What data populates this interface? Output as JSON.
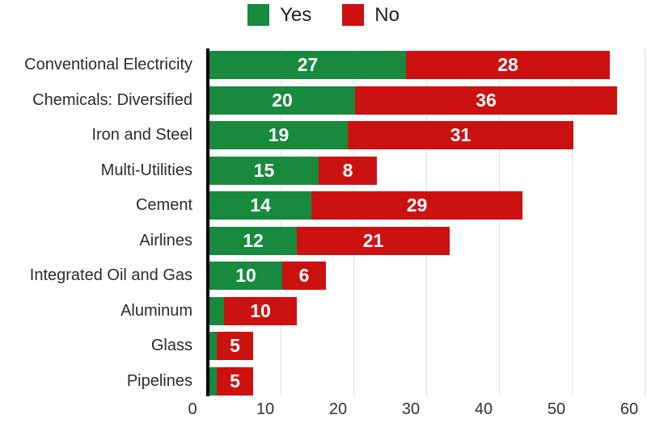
{
  "chart_data": {
    "type": "bar",
    "orientation": "horizontal",
    "stacked": true,
    "title": "",
    "categories": [
      "Conventional Electricity",
      "Chemicals: Diversified",
      "Iron and Steel",
      "Multi-Utilities",
      "Cement",
      "Airlines",
      "Integrated Oil and Gas",
      "Aluminum",
      "Glass",
      "Pipelines"
    ],
    "series": [
      {
        "name": "Yes",
        "color": "#178a3d",
        "values": [
          27,
          20,
          19,
          15,
          14,
          12,
          10,
          2,
          1,
          1
        ]
      },
      {
        "name": "No",
        "color": "#cc1111",
        "values": [
          28,
          36,
          31,
          8,
          29,
          21,
          6,
          10,
          5,
          5
        ]
      }
    ],
    "xlim": [
      0,
      60
    ],
    "xticks": [
      0,
      10,
      20,
      30,
      40,
      50,
      60
    ],
    "grid": true,
    "legend_position": "top",
    "value_label_color": "#ffffff",
    "axis_color": "#000000",
    "grid_color": "#e2e2e2",
    "label_color": "#2b2b2b"
  }
}
